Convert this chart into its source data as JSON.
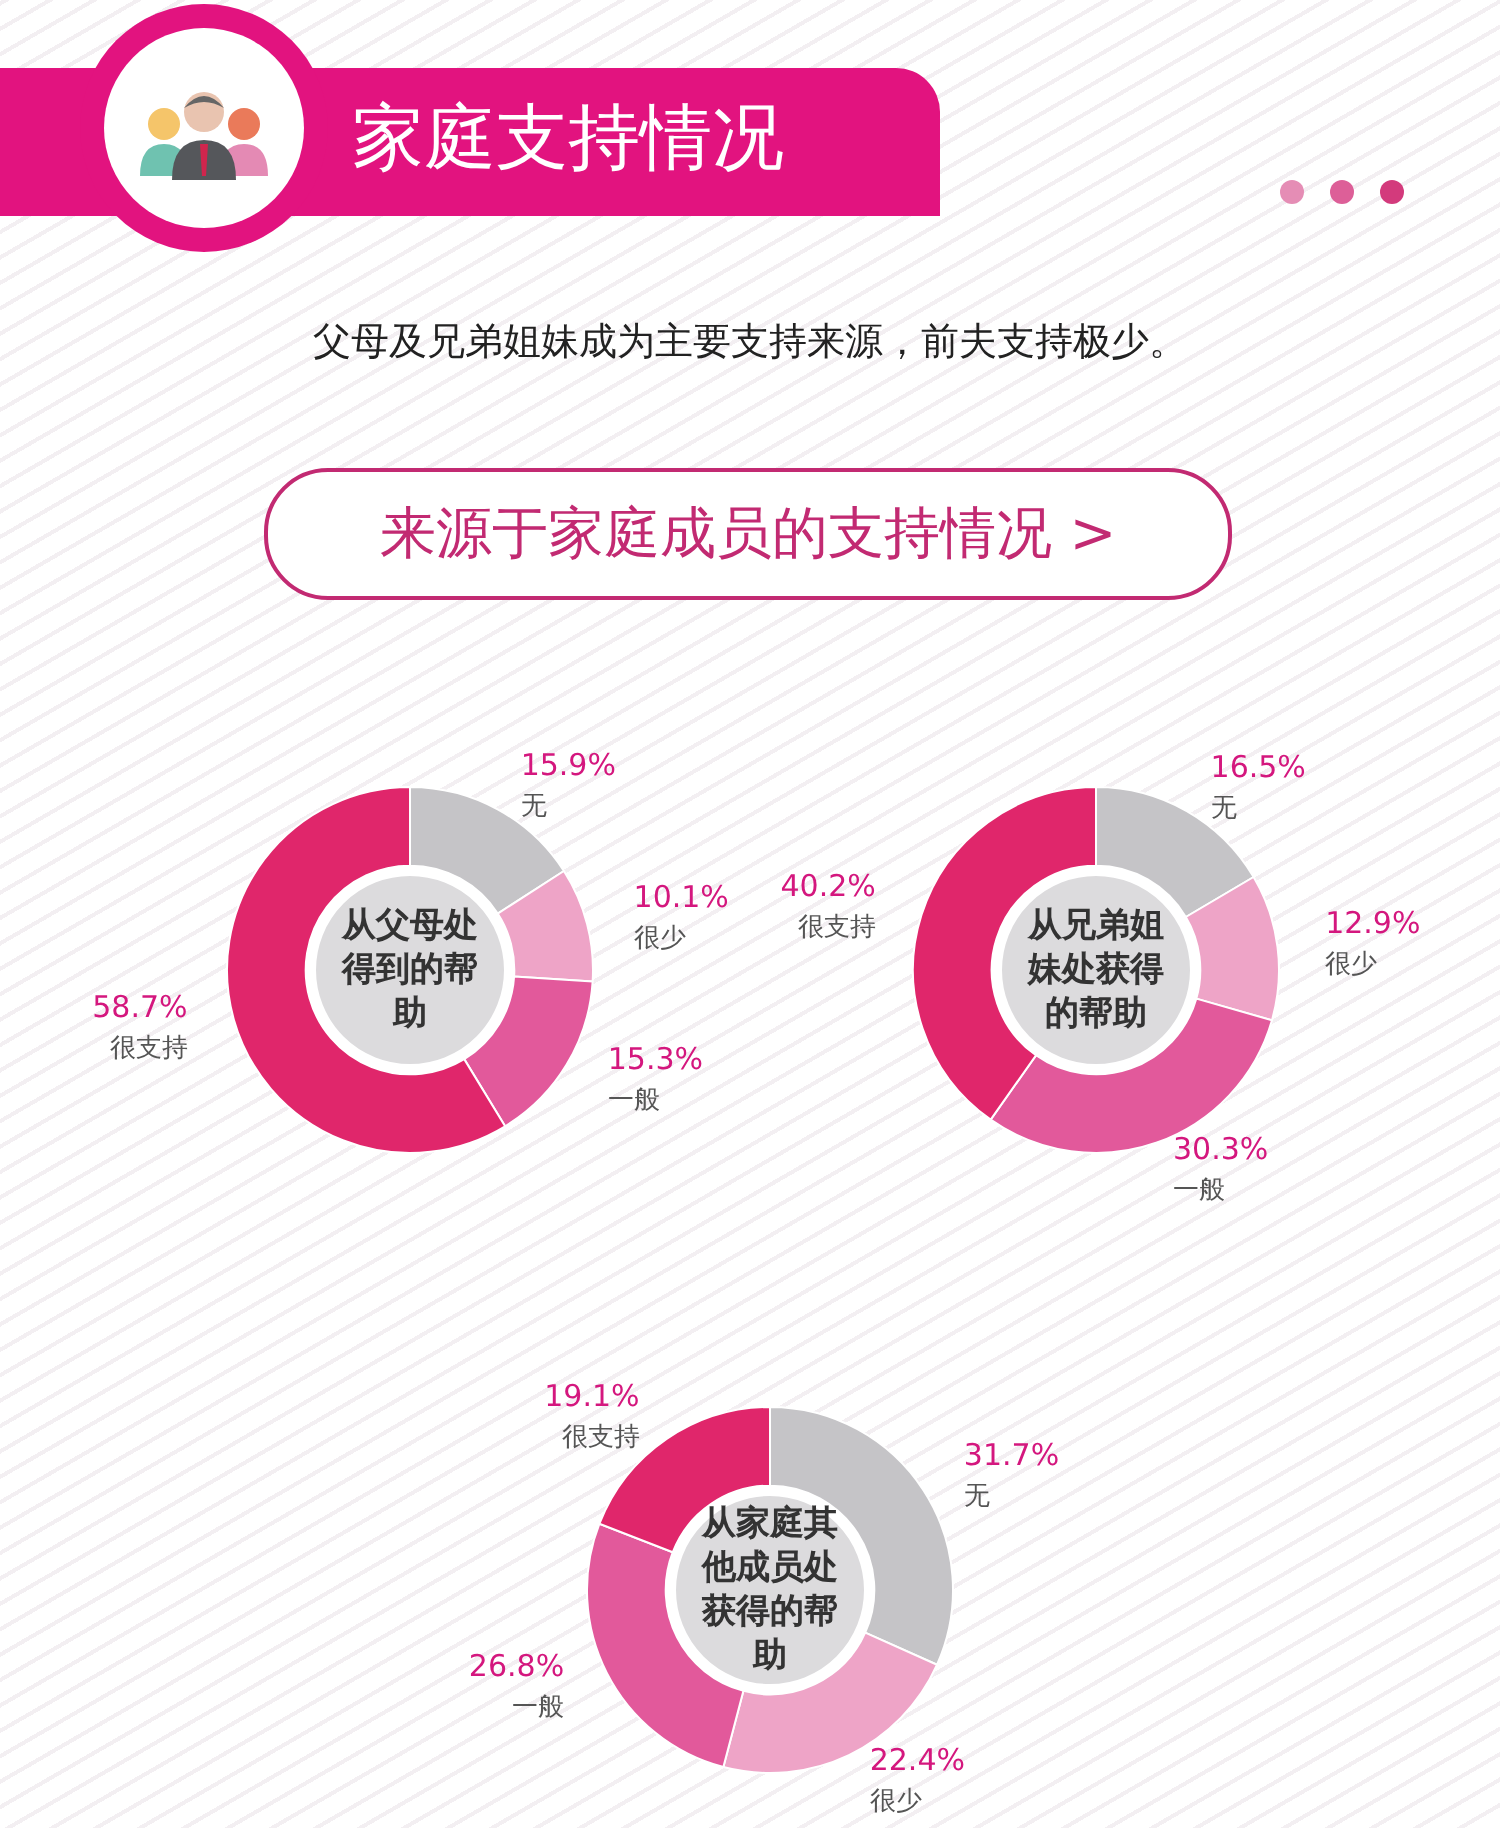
{
  "chart_data": [
    {
      "type": "other",
      "title": "家庭支持情况",
      "subtitle": "父母及兄弟姐妹成为主要支持来源，前夫支持极少。",
      "annotations": [
        "来源于家庭成员的支持情况 >"
      ]
    },
    {
      "type": "donut",
      "title": "从父母处得到的帮助",
      "categories": [
        "无",
        "很少",
        "一般",
        "很支持"
      ],
      "values": [
        15.9,
        10.1,
        15.3,
        58.7
      ],
      "value_labels": [
        "15.9%",
        "10.1%",
        "15.3%",
        "58.7%"
      ],
      "colors": [
        "#c5c4c7",
        "#eea4c7",
        "#e2599b",
        "#e0266b"
      ]
    },
    {
      "type": "donut",
      "title": "从兄弟姐妹处获得的帮助",
      "categories": [
        "无",
        "很少",
        "一般",
        "很支持"
      ],
      "values": [
        16.5,
        12.9,
        30.3,
        40.2
      ],
      "value_labels": [
        "16.5%",
        "12.9%",
        "30.3%",
        "40.2%"
      ],
      "colors": [
        "#c5c4c7",
        "#eea4c7",
        "#e2599b",
        "#e0266b"
      ]
    },
    {
      "type": "donut",
      "title": "从家庭其他成员处获得的帮助",
      "categories": [
        "无",
        "很少",
        "一般",
        "很支持"
      ],
      "values": [
        31.7,
        22.4,
        26.8,
        19.1
      ],
      "value_labels": [
        "31.7%",
        "22.4%",
        "26.8%",
        "19.1%"
      ],
      "colors": [
        "#c5c4c7",
        "#eea4c7",
        "#e2599b",
        "#e0266b"
      ]
    }
  ]
}
